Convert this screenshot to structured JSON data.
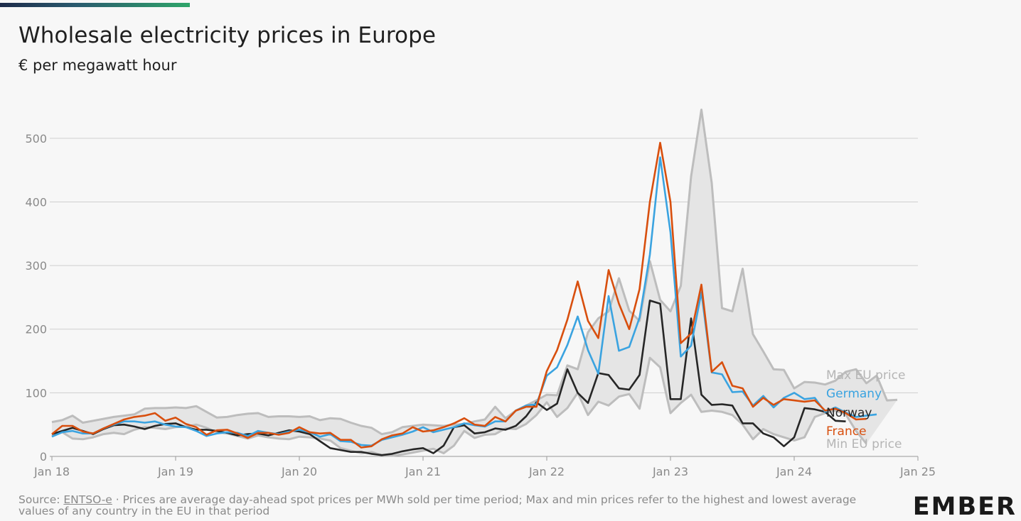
{
  "header": {
    "title": "Wholesale electricity prices in Europe",
    "subtitle": "€ per megawatt hour"
  },
  "footer": {
    "source_prefix": "Source: ",
    "source_link": "ENTSO-e",
    "source_text": " · Prices are average day-ahead spot prices per MWh sold per time period; Max and min prices refer to the highest and lowest average values of any country in the EU in that period",
    "logo": "EMBER"
  },
  "colors": {
    "germany": "#3aa3e0",
    "france": "#d84f0e",
    "norway": "#262626",
    "band_fill": "#e5e5e5",
    "band_line": "#bdbdbd",
    "grid": "#cfcfcf",
    "axis_text": "#8a8a8a"
  },
  "chart_data": {
    "type": "line",
    "x_start": "2018-01",
    "interval": "monthly",
    "xlim": [
      "Jan 18",
      "Jan 25"
    ],
    "ylim": [
      0,
      550
    ],
    "y_ticks": [
      0,
      100,
      200,
      300,
      400,
      500
    ],
    "x_ticks": [
      "Jan 18",
      "Jan 19",
      "Jan 20",
      "Jan 21",
      "Jan 22",
      "Jan 23",
      "Jan 24",
      "Jan 25"
    ],
    "grid": true,
    "legend": "inline-right",
    "band": {
      "max_label": "Max EU price",
      "min_label": "Min EU price",
      "max": [
        54,
        57,
        64,
        53,
        56,
        59,
        62,
        64,
        66,
        75,
        76,
        76,
        77,
        76,
        79,
        70,
        61,
        62,
        65,
        67,
        68,
        62,
        63,
        63,
        62,
        63,
        57,
        60,
        59,
        53,
        48,
        45,
        35,
        38,
        46,
        48,
        50,
        49,
        48,
        50,
        51,
        55,
        58,
        78,
        60,
        72,
        80,
        88,
        97,
        96,
        143,
        137,
        195,
        217,
        228,
        280,
        229,
        213,
        307,
        246,
        228,
        268,
        440,
        545,
        430,
        233,
        228,
        295,
        192,
        165,
        137,
        136,
        107,
        117,
        116,
        113,
        119,
        133,
        137,
        115,
        127,
        88,
        89
      ],
      "min": [
        32,
        38,
        28,
        27,
        30,
        35,
        37,
        35,
        42,
        46,
        45,
        43,
        46,
        47,
        50,
        45,
        38,
        36,
        32,
        28,
        33,
        30,
        28,
        27,
        31,
        30,
        28,
        25,
        13,
        9,
        5,
        7,
        2,
        1,
        3,
        6,
        9,
        12,
        5,
        17,
        40,
        29,
        34,
        35,
        44,
        43,
        51,
        65,
        85,
        62,
        76,
        100,
        65,
        86,
        80,
        94,
        98,
        75,
        155,
        140,
        68,
        84,
        97,
        70,
        72,
        70,
        65,
        50,
        27,
        43,
        35,
        30,
        25,
        30,
        62,
        68,
        72,
        66,
        40,
        20
      ]
    },
    "series": [
      {
        "name": "Germany",
        "values": [
          31,
          38,
          40,
          36,
          36,
          44,
          50,
          55,
          55,
          53,
          55,
          50,
          47,
          46,
          40,
          32,
          36,
          38,
          37,
          32,
          40,
          37,
          35,
          39,
          42,
          38,
          31,
          35,
          24,
          23,
          18,
          17,
          26,
          30,
          34,
          39,
          46,
          38,
          42,
          46,
          52,
          49,
          47,
          55,
          55,
          72,
          80,
          82,
          127,
          140,
          175,
          220,
          167,
          130,
          252,
          166,
          172,
          218,
          317,
          470,
          352,
          157,
          174,
          258,
          132,
          129,
          101,
          102,
          80,
          95,
          77,
          92,
          100,
          90,
          92,
          70,
          77,
          69,
          62,
          64,
          66
        ]
      },
      {
        "name": "France",
        "values": [
          35,
          48,
          48,
          39,
          36,
          44,
          51,
          58,
          62,
          64,
          68,
          56,
          61,
          51,
          46,
          34,
          41,
          42,
          36,
          29,
          37,
          37,
          34,
          37,
          46,
          38,
          36,
          37,
          26,
          26,
          14,
          16,
          27,
          33,
          36,
          46,
          39,
          41,
          46,
          52,
          60,
          50,
          48,
          62,
          55,
          72,
          78,
          78,
          134,
          167,
          215,
          275,
          213,
          186,
          293,
          240,
          200,
          263,
          400,
          493,
          400,
          178,
          193,
          270,
          133,
          148,
          111,
          107,
          78,
          92,
          81,
          90,
          88,
          86,
          88,
          72,
          75,
          68,
          58,
          59
        ]
      },
      {
        "name": "Norway",
        "values": [
          35,
          40,
          45,
          40,
          35,
          43,
          49,
          50,
          47,
          43,
          48,
          51,
          52,
          46,
          42,
          42,
          40,
          37,
          33,
          35,
          36,
          33,
          37,
          41,
          39,
          35,
          24,
          13,
          10,
          7,
          7,
          4,
          2,
          4,
          8,
          11,
          13,
          5,
          17,
          46,
          49,
          36,
          38,
          44,
          42,
          48,
          63,
          85,
          73,
          83,
          137,
          100,
          84,
          131,
          128,
          107,
          105,
          128,
          245,
          240,
          90,
          90,
          217,
          97,
          81,
          82,
          80,
          52,
          52,
          36,
          30,
          16,
          30,
          76,
          74,
          70,
          56,
          55
        ]
      }
    ]
  }
}
